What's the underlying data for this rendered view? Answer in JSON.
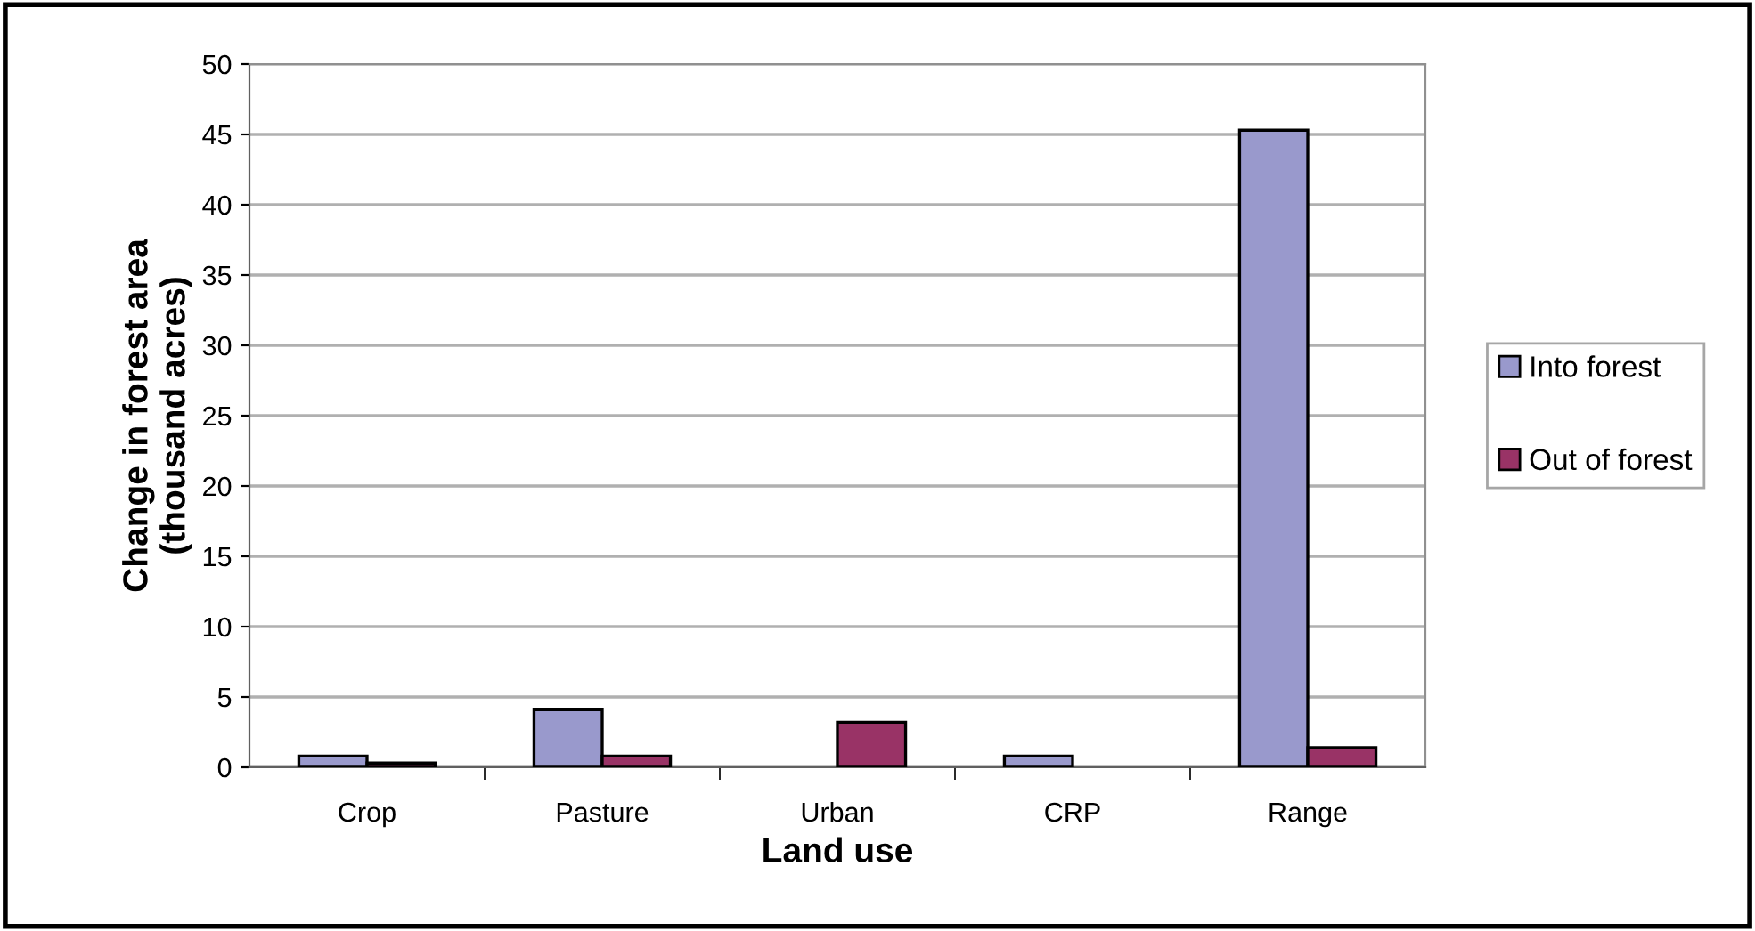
{
  "chart_data": {
    "type": "bar",
    "xlabel": "Land use",
    "ylabel": "Change in forest area\n(thousand acres)",
    "categories": [
      "Crop",
      "Pasture",
      "Urban",
      "CRP",
      "Range"
    ],
    "series": [
      {
        "name": "Into forest",
        "color": "#9999cc",
        "values": [
          0.8,
          4.1,
          null,
          0.8,
          45.3
        ]
      },
      {
        "name": "Out of forest",
        "color": "#993366",
        "values": [
          0.3,
          0.8,
          3.2,
          null,
          1.4
        ]
      }
    ],
    "ylim": [
      0,
      50
    ],
    "yticks": [
      0,
      5,
      10,
      15,
      20,
      25,
      30,
      35,
      40,
      45,
      50
    ],
    "grid": "y",
    "legend": "right"
  }
}
